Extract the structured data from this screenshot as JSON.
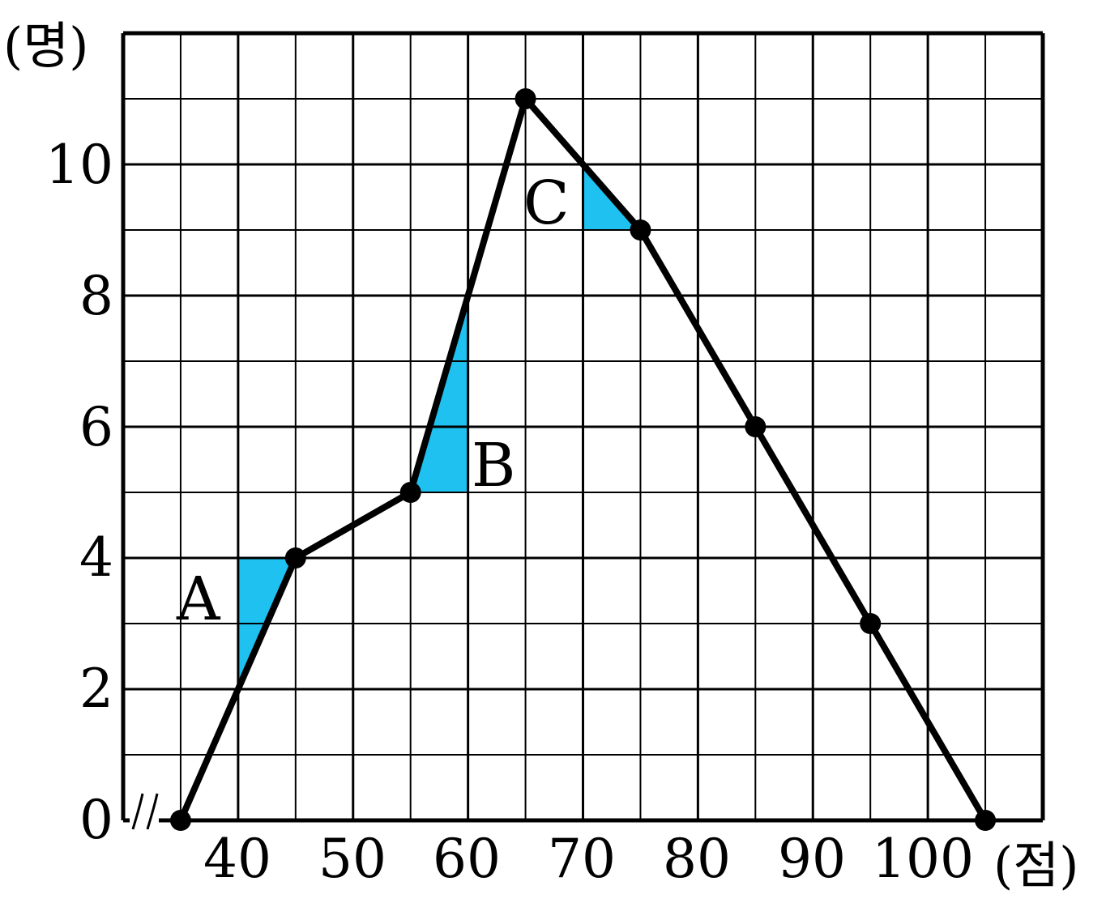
{
  "chart_data": {
    "type": "line",
    "title": "",
    "xlabel": "(점)",
    "ylabel": "(명)",
    "x_ticks": [
      "40",
      "50",
      "60",
      "70",
      "80",
      "90",
      "100"
    ],
    "y_ticks": [
      "0",
      "2",
      "4",
      "6",
      "8",
      "10"
    ],
    "xlim": [
      30,
      110
    ],
    "ylim": [
      0,
      12
    ],
    "grid": true,
    "axis_break": "x",
    "series": [
      {
        "points": [
          {
            "x": 35,
            "y": 0
          },
          {
            "x": 45,
            "y": 4
          },
          {
            "x": 55,
            "y": 5
          },
          {
            "x": 65,
            "y": 11
          },
          {
            "x": 75,
            "y": 9
          },
          {
            "x": 85,
            "y": 6
          },
          {
            "x": 95,
            "y": 3
          },
          {
            "x": 105,
            "y": 0
          }
        ]
      }
    ],
    "shaded_regions": [
      {
        "label": "A",
        "vertices": [
          [
            40,
            2
          ],
          [
            40,
            4
          ],
          [
            45,
            4
          ]
        ]
      },
      {
        "label": "B",
        "vertices": [
          [
            55,
            5
          ],
          [
            60,
            5
          ],
          [
            60,
            8
          ]
        ]
      },
      {
        "label": "C",
        "vertices": [
          [
            70,
            10
          ],
          [
            70,
            9
          ],
          [
            75,
            9
          ]
        ]
      }
    ],
    "shade_color": "#1ec1f0",
    "line_color": "#000000"
  }
}
